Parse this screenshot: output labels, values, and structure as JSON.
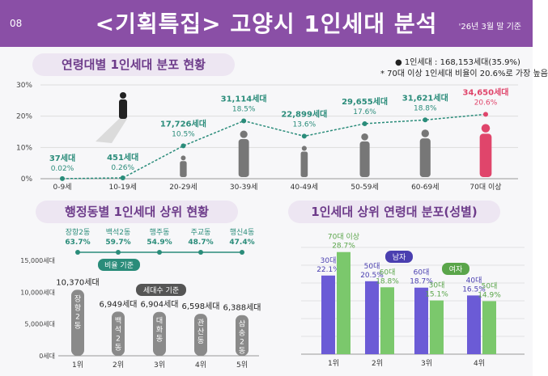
{
  "header": {
    "page_number": "08",
    "title": "<기획특집> 고양시 1인세대 분석",
    "date_note": "'26년 3월 말 기준"
  },
  "section_age": {
    "title": "연령대별 1인세대 분포 현황",
    "notes": [
      "● 1인세대 : 168,153세대(35.9%)",
      "* 70대 이상 1인세대 비율이 20.6%로 가장 높음"
    ]
  },
  "section_dong": {
    "title": "행정동별 1인세대 상위 현황",
    "ratio_tag": "비율 기준",
    "count_tag": "세대수 기준"
  },
  "section_gender": {
    "title": "1인세대 상위 연령대 분포(성별)",
    "male_tag": "남자",
    "female_tag": "여자"
  },
  "colors": {
    "purple": "#8a4fa6",
    "teal": "#2a8c7a",
    "red": "#e0456b",
    "gray": "#8a8a8a",
    "blue_violet": "#6b5bd6",
    "green": "#7bc86c"
  },
  "chart_data": [
    {
      "type": "line",
      "title": "연령대별 1인세대 분포 현황",
      "categories": [
        "0-9세",
        "10-19세",
        "20-29세",
        "30-39세",
        "40-49세",
        "50-59세",
        "60-69세",
        "70대 이상"
      ],
      "values": [
        0.02,
        0.26,
        10.5,
        18.5,
        13.6,
        17.6,
        18.8,
        20.6
      ],
      "value_labels": [
        "0.02%",
        "0.26%",
        "10.5%",
        "18.5%",
        "13.6%",
        "17.6%",
        "18.8%",
        "20.6%"
      ],
      "count_labels": [
        "37세대",
        "451세대",
        "17,726세대",
        "31,114세대",
        "22,899세대",
        "29,655세대",
        "31,621세대",
        "34,650세대"
      ],
      "y_ticks": [
        "0%",
        "10%",
        "20%",
        "30%"
      ],
      "ylim": [
        0,
        30
      ],
      "grid": true
    },
    {
      "type": "line",
      "title": "행정동별 1인세대 상위 현황 (비율 기준)",
      "categories": [
        "장항2동",
        "백석2동",
        "행주동",
        "주교동",
        "행신4동"
      ],
      "values": [
        63.7,
        59.7,
        54.9,
        48.7,
        47.4
      ],
      "value_labels": [
        "63.7%",
        "59.7%",
        "54.9%",
        "48.7%",
        "47.4%"
      ]
    },
    {
      "type": "bar",
      "title": "행정동별 1인세대 상위 현황 (세대수 기준)",
      "categories": [
        "1위",
        "2위",
        "3위",
        "4위",
        "5위"
      ],
      "bar_labels": [
        "장항2동",
        "백석2동",
        "대화동",
        "관산동",
        "삼송2동"
      ],
      "values": [
        10370,
        6949,
        6904,
        6598,
        6388
      ],
      "value_labels": [
        "10,370세대",
        "6,949세대",
        "6,904세대",
        "6,598세대",
        "6,388세대"
      ],
      "y_ticks": [
        "0세대",
        "5,000세대",
        "10,000세대",
        "15,000세대"
      ],
      "ylim": [
        0,
        15000
      ]
    },
    {
      "type": "bar",
      "title": "1인세대 상위 연령대 분포(성별)",
      "categories": [
        "1위",
        "2위",
        "3위",
        "4위"
      ],
      "series": [
        {
          "name": "남자",
          "values": [
            22.1,
            20.5,
            18.7,
            16.5
          ],
          "labels": [
            "30대",
            "50대",
            "60대",
            "40대"
          ],
          "value_labels": [
            "22.1%",
            "20.5%",
            "18.7%",
            "16.5%"
          ]
        },
        {
          "name": "여자",
          "values": [
            28.7,
            18.8,
            15.1,
            14.9
          ],
          "labels": [
            "70대 이상",
            "60대",
            "30대",
            "50대"
          ],
          "value_labels": [
            "28.7%",
            "18.8%",
            "15.1%",
            "14.9%"
          ]
        }
      ],
      "ylim": [
        0,
        30
      ],
      "grid": true
    }
  ]
}
